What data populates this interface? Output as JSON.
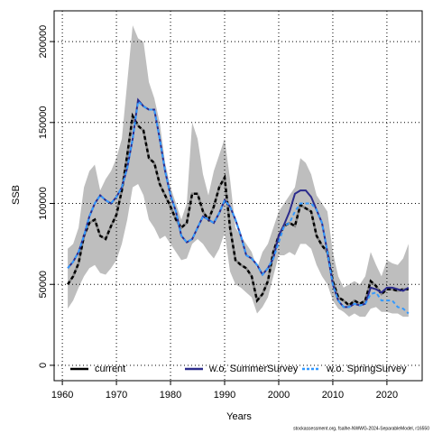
{
  "chart_data": {
    "type": "line",
    "xlabel": "Years",
    "ylabel": "SSB",
    "footer": "stockassessment.org, fsalhe-NWWG-2024-SeparableModel, r16550",
    "x": [
      1961,
      1962,
      1963,
      1964,
      1965,
      1966,
      1967,
      1968,
      1969,
      1970,
      1971,
      1972,
      1973,
      1974,
      1975,
      1976,
      1977,
      1978,
      1979,
      1980,
      1981,
      1982,
      1983,
      1984,
      1985,
      1986,
      1987,
      1988,
      1989,
      1990,
      1991,
      1992,
      1993,
      1994,
      1995,
      1996,
      1997,
      1998,
      1999,
      2000,
      2001,
      2002,
      2003,
      2004,
      2005,
      2006,
      2007,
      2008,
      2009,
      2010,
      2011,
      2012,
      2013,
      2014,
      2015,
      2016,
      2017,
      2018,
      2019,
      2020,
      2021,
      2022,
      2023,
      2024
    ],
    "band": {
      "color": "#bebebe",
      "upper": [
        72000,
        75000,
        85000,
        110000,
        120000,
        124000,
        108000,
        115000,
        120000,
        128000,
        140000,
        175000,
        210000,
        202000,
        200000,
        175000,
        165000,
        150000,
        125000,
        110000,
        100000,
        90000,
        100000,
        150000,
        140000,
        118000,
        105000,
        120000,
        130000,
        140000,
        115000,
        85000,
        80000,
        75000,
        70000,
        60000,
        70000,
        75000,
        85000,
        95000,
        100000,
        105000,
        110000,
        128000,
        125000,
        118000,
        105000,
        100000,
        95000,
        70000,
        55000,
        48000,
        50000,
        52000,
        50000,
        55000,
        70000,
        62000,
        55000,
        65000,
        63000,
        62000,
        66000,
        75000
      ],
      "lower": [
        35000,
        40000,
        48000,
        55000,
        60000,
        62000,
        57000,
        56000,
        60000,
        65000,
        75000,
        90000,
        110000,
        112000,
        105000,
        90000,
        85000,
        78000,
        80000,
        75000,
        70000,
        65000,
        66000,
        75000,
        78000,
        75000,
        70000,
        66000,
        72000,
        82000,
        58000,
        50000,
        48000,
        45000,
        42000,
        32000,
        36000,
        42000,
        55000,
        68000,
        68000,
        70000,
        68000,
        75000,
        75000,
        72000,
        62000,
        55000,
        50000,
        40000,
        35000,
        33000,
        30000,
        32000,
        30000,
        30000,
        35000,
        36000,
        33000,
        33000,
        32000,
        32000,
        30000,
        30000
      ]
    },
    "series": [
      {
        "name": "current",
        "color": "#000000",
        "dash": true,
        "values": [
          50000,
          55000,
          63000,
          80000,
          88000,
          90000,
          80000,
          78000,
          86000,
          93000,
          108000,
          130000,
          154000,
          148000,
          145000,
          128000,
          125000,
          112000,
          105000,
          98000,
          90000,
          85000,
          88000,
          106000,
          106000,
          95000,
          90000,
          98000,
          110000,
          116000,
          85000,
          65000,
          62000,
          60000,
          55000,
          40000,
          44000,
          52000,
          70000,
          80000,
          86000,
          88000,
          86000,
          99000,
          97000,
          95000,
          80000,
          74000,
          70000,
          52000,
          42000,
          40000,
          37000,
          40000,
          38000,
          40000,
          52000,
          49000,
          44000,
          47000,
          47000,
          46000,
          47000,
          47000
        ]
      },
      {
        "name": "w.o. SummerSurvey",
        "color": "#2b2b8c",
        "dash": false,
        "values": [
          60000,
          64000,
          70000,
          80000,
          92000,
          100000,
          105000,
          102000,
          100000,
          104000,
          110000,
          122000,
          140000,
          164000,
          160000,
          158000,
          158000,
          140000,
          120000,
          105000,
          95000,
          80000,
          76000,
          78000,
          85000,
          92000,
          90000,
          88000,
          94000,
          102000,
          98000,
          90000,
          80000,
          68000,
          66000,
          62000,
          56000,
          60000,
          66000,
          80000,
          87000,
          95000,
          106000,
          108000,
          108000,
          104000,
          96000,
          88000,
          70000,
          50000,
          40000,
          36000,
          36000,
          38000,
          37000,
          38000,
          48000,
          47000,
          45000,
          48000,
          48000,
          47000,
          46000,
          48000
        ]
      },
      {
        "name": "w.o. SpringSurvey",
        "color": "#3399ff",
        "dash": true,
        "values": [
          60000,
          64000,
          70000,
          80000,
          92000,
          100000,
          105000,
          102000,
          100000,
          104000,
          110000,
          122000,
          140000,
          163000,
          160000,
          158000,
          158000,
          140000,
          120000,
          105000,
          95000,
          80000,
          76000,
          78000,
          85000,
          92000,
          90000,
          88000,
          94000,
          102000,
          98000,
          90000,
          80000,
          68000,
          66000,
          62000,
          56000,
          60000,
          66000,
          76000,
          86000,
          88000,
          95000,
          100000,
          100000,
          100000,
          96000,
          88000,
          70000,
          50000,
          40000,
          36000,
          36000,
          38000,
          37000,
          38000,
          44000,
          45000,
          40000,
          40000,
          40000,
          36000,
          35000,
          32000
        ]
      }
    ],
    "xlim": [
      1958.48,
      2026.52
    ],
    "ylim": [
      -9500,
      219000
    ],
    "xticks": [
      1960,
      1970,
      1980,
      1990,
      2000,
      2010,
      2020
    ],
    "yticks": [
      0,
      50000,
      100000,
      150000,
      200000
    ],
    "grid": true,
    "legend": "bottom"
  }
}
